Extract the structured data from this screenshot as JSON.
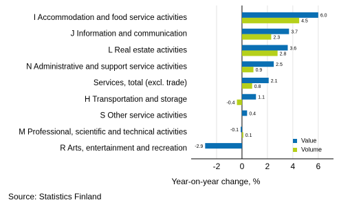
{
  "chart_data": {
    "type": "hbar",
    "categories": [
      "I Accommodation and food service activities",
      "J Information and communication",
      "L Real estate activities",
      "N Administrative and support service activities",
      "Services, total (excl. trade)",
      "H Transportation and storage",
      "S Other service activities",
      "M Professional, scientific and technical activities",
      "R Arts, entertainment and recreation"
    ],
    "series": [
      {
        "name": "Value",
        "color": "#0a6fb3",
        "values": [
          6.0,
          3.7,
          3.6,
          2.5,
          2.1,
          1.1,
          0.4,
          -0.1,
          -2.9
        ],
        "value_labels": [
          "6.0",
          "3.7",
          "3.6",
          "2.5",
          "2.1",
          "1.1",
          "0.4",
          "-0.1",
          "-2.9"
        ]
      },
      {
        "name": "Volume",
        "color": "#b6d01a",
        "values": [
          4.5,
          2.3,
          2.8,
          0.9,
          0.8,
          -0.4,
          null,
          0.1,
          null
        ],
        "value_labels": [
          "4.5",
          "2.3",
          "2.8",
          "0.9",
          "0.8",
          "-0.4",
          null,
          "0.1",
          null
        ]
      }
    ],
    "xlabel": "Year-on-year change, %",
    "xlim": [
      -4,
      7.2
    ],
    "xticks": [
      -2,
      0,
      2,
      4,
      6
    ],
    "source": "Source: Statistics Finland",
    "legend": "lower-right"
  }
}
